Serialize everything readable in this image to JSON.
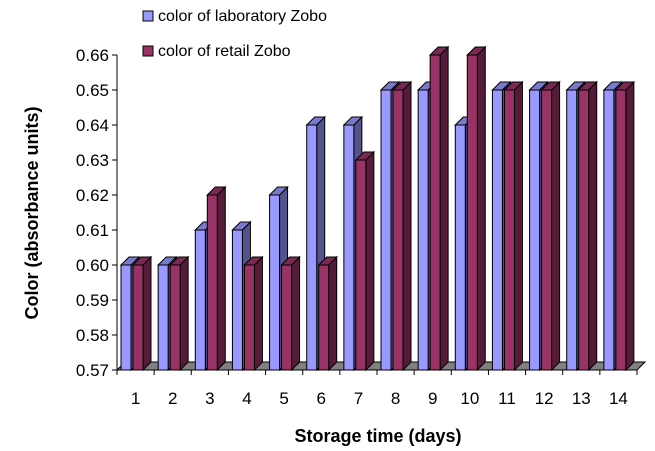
{
  "chart_data": {
    "type": "bar",
    "xlabel": "Storage time (days)",
    "ylabel": "Color (absorbance units)",
    "categories": [
      "1",
      "2",
      "3",
      "4",
      "5",
      "6",
      "7",
      "8",
      "9",
      "10",
      "11",
      "12",
      "13",
      "14"
    ],
    "ylim": [
      0.57,
      0.66
    ],
    "yticks": [
      "0.57",
      "0.58",
      "0.59",
      "0.60",
      "0.61",
      "0.62",
      "0.63",
      "0.64",
      "0.65",
      "0.66"
    ],
    "legend_position": "top-left",
    "series": [
      {
        "name": "color of laboratory Zobo",
        "color": "#9999FF",
        "values": [
          0.6,
          0.6,
          0.61,
          0.61,
          0.62,
          0.64,
          0.64,
          0.65,
          0.65,
          0.64,
          0.65,
          0.65,
          0.65,
          0.65
        ]
      },
      {
        "name": "color of retail Zobo",
        "color": "#993366",
        "values": [
          0.6,
          0.6,
          0.62,
          0.6,
          0.6,
          0.6,
          0.63,
          0.65,
          0.66,
          0.66,
          0.65,
          0.65,
          0.65,
          0.65
        ]
      }
    ]
  }
}
